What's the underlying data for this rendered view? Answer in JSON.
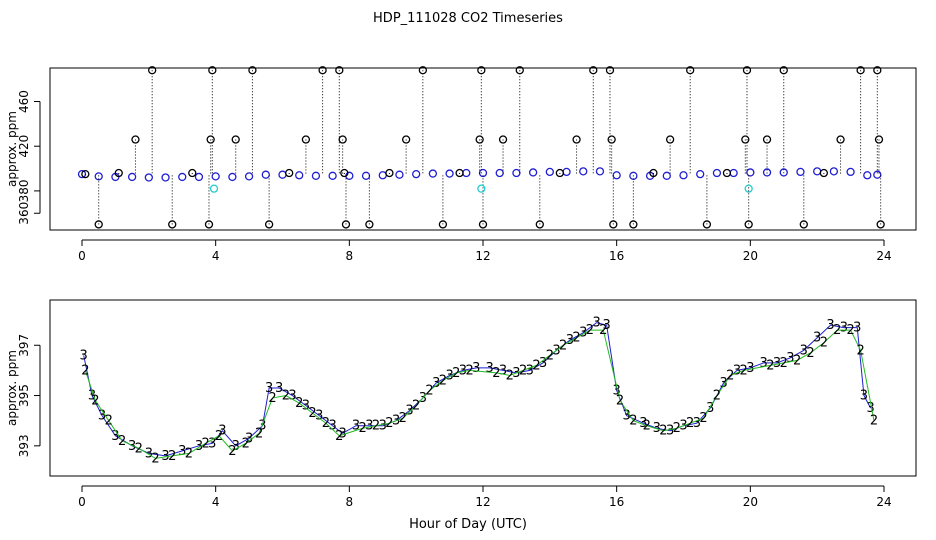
{
  "figure": {
    "title": "HDP_111028  CO2 Timeseries",
    "xlabel": "Hour of Day (UTC)"
  },
  "chart_data": [
    {
      "type": "scatter",
      "panel": "top",
      "title": "HDP_111028  CO2 Timeseries",
      "xlabel": "",
      "ylabel": "approx. ppm",
      "xlim": [
        0,
        24
      ],
      "ylim": [
        345,
        490
      ],
      "x_ticks": [
        0,
        4,
        8,
        12,
        16,
        20,
        24
      ],
      "y_ticks": [
        360,
        380,
        420,
        460
      ],
      "y_tick_labels": [
        "360",
        "380",
        "420",
        "460"
      ],
      "grid": false,
      "legend": "none",
      "series": [
        {
          "marker": "open-circle",
          "color": "#1e1ed2",
          "x": [
            0.0,
            0.5,
            1.0,
            1.5,
            2.0,
            2.5,
            3.0,
            3.5,
            4.0,
            4.5,
            5.0,
            5.5,
            6.0,
            6.5,
            7.0,
            7.5,
            8.0,
            8.5,
            9.0,
            9.5,
            10.0,
            10.5,
            11.0,
            11.5,
            12.0,
            12.5,
            13.0,
            13.5,
            14.0,
            14.5,
            15.0,
            15.5,
            16.0,
            16.5,
            17.0,
            17.5,
            18.0,
            18.5,
            19.0,
            19.5,
            20.0,
            20.5,
            21.0,
            21.5,
            22.0,
            22.5,
            23.0,
            23.5,
            23.8
          ],
          "y": [
            395,
            393,
            392.5,
            392.5,
            392,
            392,
            392.5,
            392.5,
            393,
            392.5,
            393,
            394.5,
            394.5,
            394,
            393.5,
            393.5,
            393.5,
            393.5,
            394,
            394.5,
            395,
            395.5,
            395.5,
            396,
            396,
            396,
            396,
            396.5,
            397,
            397,
            397.5,
            397.5,
            394,
            393.5,
            393.5,
            393.5,
            394,
            395,
            396,
            396,
            396.5,
            396.5,
            396.5,
            397,
            397.5,
            397.5,
            397,
            394,
            394.5
          ]
        },
        {
          "marker": "open-circle",
          "color": "#000000",
          "x": [
            0.1,
            0.5,
            1.1,
            1.6,
            2.1,
            2.7,
            3.3,
            3.8,
            3.85,
            3.9,
            4.6,
            5.1,
            5.6,
            6.2,
            6.7,
            7.2,
            7.7,
            7.8,
            7.85,
            7.9,
            8.6,
            9.2,
            9.7,
            10.2,
            10.8,
            11.3,
            11.9,
            11.95,
            12.0,
            12.6,
            13.1,
            13.7,
            14.3,
            14.8,
            15.3,
            15.8,
            15.85,
            15.9,
            16.5,
            17.1,
            17.6,
            18.2,
            18.7,
            19.3,
            19.85,
            19.9,
            19.95,
            20.5,
            21.0,
            21.6,
            22.2,
            22.7,
            23.3,
            23.8,
            23.85,
            23.9
          ],
          "y": [
            395,
            350,
            396,
            426,
            488,
            350,
            396,
            350,
            426,
            488,
            426,
            488,
            350,
            396,
            426,
            488,
            488,
            426,
            396,
            350,
            350,
            396,
            426,
            488,
            350,
            396,
            426,
            488,
            350,
            426,
            488,
            350,
            396,
            426,
            488,
            488,
            426,
            350,
            350,
            396,
            426,
            488,
            350,
            396,
            426,
            488,
            350,
            426,
            488,
            350,
            396,
            426,
            488,
            488,
            426,
            350
          ]
        },
        {
          "marker": "open-circle",
          "color": "#22cccc",
          "x": [
            3.95,
            11.95,
            19.95
          ],
          "y": [
            382,
            382,
            382
          ]
        }
      ]
    },
    {
      "type": "scatter",
      "panel": "bottom",
      "xlabel": "Hour of Day (UTC)",
      "ylabel": "approx. ppm",
      "xlim": [
        0,
        24
      ],
      "ylim": [
        391.8,
        398.8
      ],
      "x_ticks": [
        0,
        4,
        8,
        12,
        16,
        20,
        24
      ],
      "y_ticks": [
        393,
        395,
        397
      ],
      "y_tick_labels": [
        "393",
        "395",
        "397"
      ],
      "grid": false,
      "legend": "none",
      "series": [
        {
          "marker": "digit-3",
          "color": "#1e1ed2",
          "x": [
            0.05,
            0.3,
            0.6,
            1.0,
            1.5,
            2.0,
            2.5,
            3.0,
            3.5,
            3.9,
            4.2,
            4.6,
            5.0,
            5.4,
            5.6,
            5.9,
            6.3,
            6.7,
            7.1,
            7.5,
            7.8,
            8.2,
            8.6,
            9.0,
            9.4,
            9.8,
            10.2,
            10.6,
            11.0,
            11.4,
            11.8,
            12.2,
            12.6,
            13.0,
            13.4,
            13.8,
            14.2,
            14.6,
            15.0,
            15.4,
            15.7,
            16.0,
            16.3,
            16.8,
            17.2,
            17.6,
            18.0,
            18.4,
            18.8,
            19.2,
            19.6,
            20.0,
            20.4,
            20.8,
            21.2,
            21.6,
            22.0,
            22.4,
            22.8,
            23.2,
            23.4,
            23.6
          ],
          "y": [
            396.6,
            395,
            394.2,
            393.4,
            393,
            392.7,
            392.6,
            392.8,
            393,
            393.1,
            393.6,
            393,
            393.3,
            393.8,
            395.3,
            395.3,
            395,
            394.6,
            394.2,
            393.8,
            393.5,
            393.8,
            393.8,
            393.8,
            394,
            394.4,
            394.9,
            395.5,
            395.8,
            396,
            396.1,
            396.1,
            396,
            395.9,
            396,
            396.3,
            396.8,
            397.2,
            397.5,
            397.9,
            397.8,
            395.2,
            394.2,
            393.9,
            393.7,
            393.6,
            393.8,
            393.9,
            394.5,
            395.5,
            396,
            396.1,
            396.3,
            396.3,
            396.5,
            396.8,
            397.3,
            397.8,
            397.7,
            397.7,
            395,
            394.5
          ]
        },
        {
          "marker": "digit-2",
          "color": "#22bb22",
          "x": [
            0.1,
            0.4,
            0.8,
            1.2,
            1.7,
            2.2,
            2.7,
            3.2,
            3.7,
            4.1,
            4.5,
            4.9,
            5.3,
            5.7,
            6.1,
            6.5,
            6.9,
            7.3,
            7.7,
            8.4,
            8.8,
            9.2,
            9.6,
            10.0,
            10.4,
            10.8,
            11.2,
            11.6,
            12.4,
            12.8,
            13.2,
            13.6,
            14.0,
            14.4,
            14.8,
            15.2,
            15.6,
            16.1,
            16.5,
            16.9,
            17.4,
            17.8,
            18.2,
            18.6,
            19.0,
            19.4,
            19.8,
            20.6,
            21.0,
            21.4,
            21.8,
            22.2,
            22.6,
            23.0,
            23.3,
            23.7
          ],
          "y": [
            396,
            394.8,
            394,
            393.2,
            392.9,
            392.5,
            392.6,
            392.7,
            393.1,
            393.4,
            392.8,
            393.1,
            393.5,
            394.9,
            395,
            394.7,
            394.3,
            393.9,
            393.4,
            393.7,
            393.8,
            393.9,
            394.1,
            394.6,
            395.2,
            395.6,
            395.9,
            396,
            395.9,
            395.8,
            396,
            396.2,
            396.6,
            397,
            397.3,
            397.6,
            397.6,
            394.8,
            394,
            393.8,
            393.6,
            393.7,
            393.9,
            394.1,
            395,
            395.8,
            396,
            396.2,
            396.3,
            396.4,
            396.7,
            397.1,
            397.6,
            397.6,
            396.8,
            394
          ]
        }
      ]
    }
  ]
}
